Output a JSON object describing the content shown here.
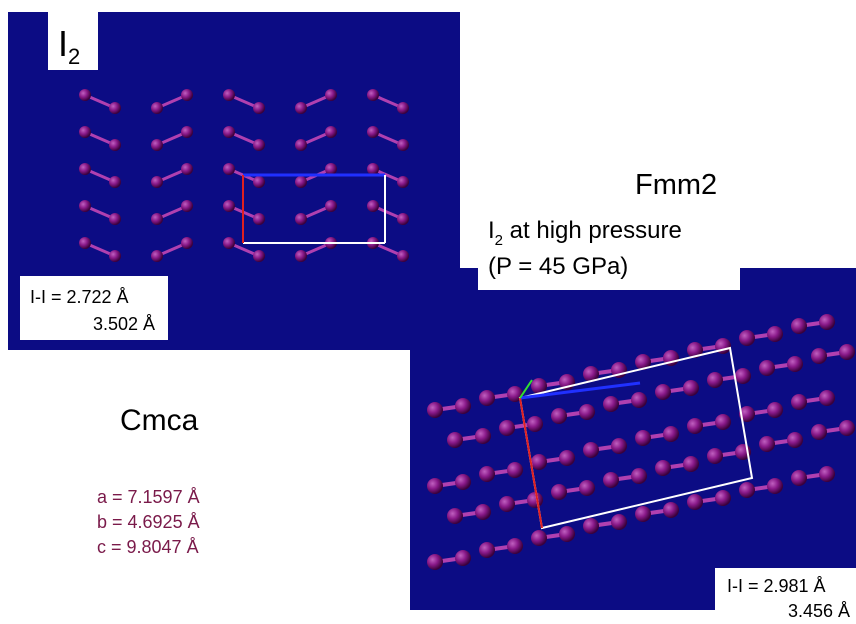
{
  "panel_top": {
    "label": {
      "main": "I",
      "sub": "2"
    },
    "bond_lengths": [
      "I-I = 2.722 Å",
      "3.502 Å"
    ]
  },
  "fmm2": {
    "title": "Fmm2",
    "subtitle": {
      "main": "I",
      "sub": "2",
      "rest": " at high pressure"
    },
    "pressure": "(P = 45 GPa)"
  },
  "cmca": {
    "title": "Cmca",
    "params": [
      "a = 7.1597 Å",
      "b = 4.6925 Å",
      "c = 9.8047 Å"
    ]
  },
  "panel_bottom": {
    "bond_lengths": [
      "I-I = 2.981 Å",
      "3.456 Å"
    ]
  }
}
